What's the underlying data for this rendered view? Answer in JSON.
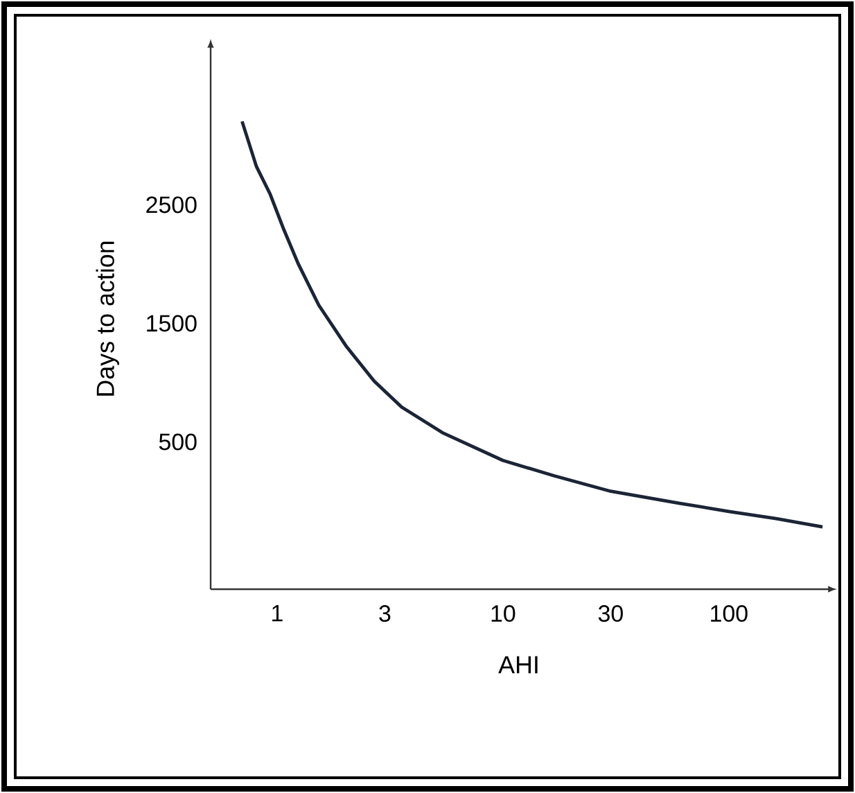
{
  "chart_data": {
    "type": "line",
    "xlabel": "AHI",
    "ylabel": "Days to action",
    "log": "x",
    "x": [
      0.7,
      0.81,
      0.93,
      1.07,
      1.24,
      1.53,
      2.03,
      2.69,
      3.56,
      5.45,
      10,
      16.9,
      30,
      60,
      100,
      162,
      260
    ],
    "values": [
      3230,
      2850,
      2620,
      2320,
      2030,
      1680,
      1330,
      1040,
      820,
      600,
      370,
      240,
      110,
      10,
      -60,
      -120,
      -190
    ],
    "color": "#1c2536",
    "xlim": [
      0.508,
      273
    ],
    "ylim": [
      -716,
      3845
    ],
    "xticks": [
      1,
      3,
      10,
      30,
      100
    ],
    "yticks": [
      500,
      1500,
      2500
    ]
  }
}
